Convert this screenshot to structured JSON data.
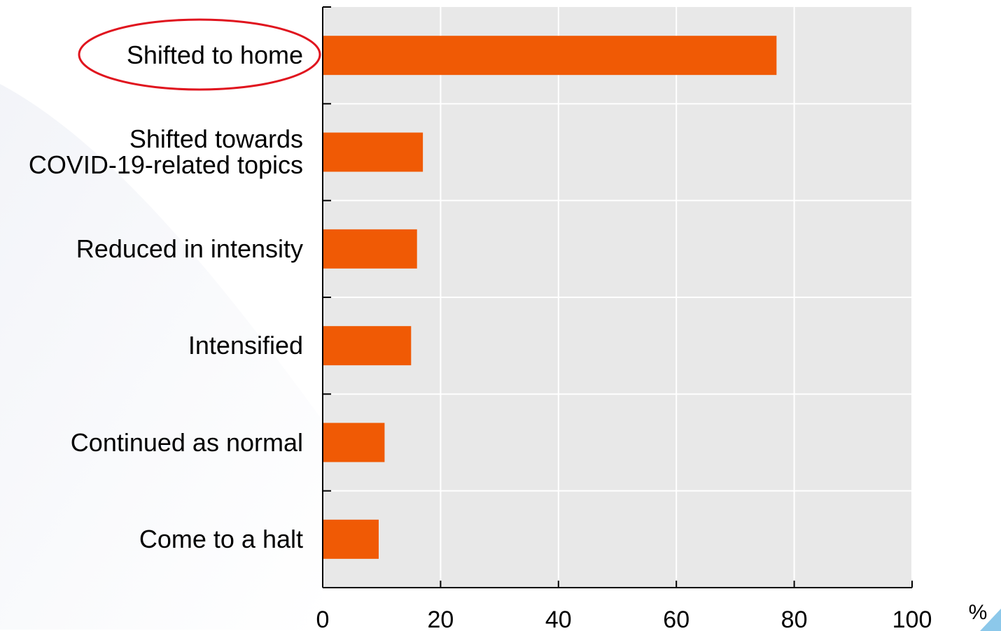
{
  "chart_data": {
    "type": "barh",
    "categories": [
      "Shifted to home",
      "Shifted towards\nCOVID-19-related topics",
      "Reduced in intensity",
      "Intensified",
      "Continued as normal",
      "Come to a halt"
    ],
    "values": [
      77,
      17,
      16,
      15,
      10.5,
      9.5
    ],
    "color": "#f05a05",
    "x_label": "%",
    "xlim": [
      0,
      100
    ],
    "xticks": [
      0,
      20,
      40,
      60,
      80,
      100
    ],
    "grid": true
  }
}
